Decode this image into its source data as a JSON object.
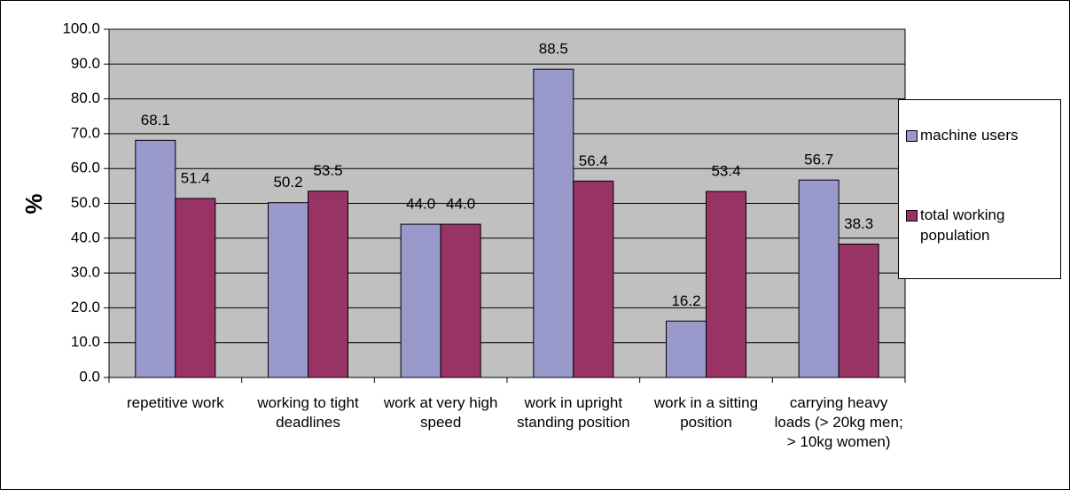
{
  "chart_data": {
    "type": "bar",
    "y_label": "%",
    "categories": [
      "repetitive work",
      "working to tight deadlines",
      "work at very high speed",
      "work in upright standing position",
      "work in a sitting position",
      "carrying heavy loads (> 20kg men; > 10kg women)"
    ],
    "series": [
      {
        "name": "machine users",
        "color": "#9999cc",
        "values": [
          68.1,
          50.2,
          44.0,
          88.5,
          16.2,
          56.7
        ],
        "value_labels": [
          "68.1",
          "50.2",
          "44.0",
          "88.5",
          "16.2",
          "56.7"
        ]
      },
      {
        "name": "total working population",
        "color": "#993366",
        "values": [
          51.4,
          53.5,
          44.0,
          56.4,
          53.4,
          38.3
        ],
        "value_labels": [
          "51.4",
          "53.5",
          "44.0",
          "56.4",
          "53.4",
          "38.3"
        ]
      }
    ],
    "ylim": [
      0,
      100
    ],
    "yticks": [
      {
        "value": 0,
        "label": "0.0"
      },
      {
        "value": 10,
        "label": "10.0"
      },
      {
        "value": 20,
        "label": "20.0"
      },
      {
        "value": 30,
        "label": "30.0"
      },
      {
        "value": 40,
        "label": "40.0"
      },
      {
        "value": 50,
        "label": "50.0"
      },
      {
        "value": 60,
        "label": "60.0"
      },
      {
        "value": 70,
        "label": "70.0"
      },
      {
        "value": 80,
        "label": "80.0"
      },
      {
        "value": 90,
        "label": "90.0"
      },
      {
        "value": 100,
        "label": "100.0"
      }
    ],
    "grid": true,
    "legend": "right",
    "plot_background": "#c0c0c0"
  }
}
